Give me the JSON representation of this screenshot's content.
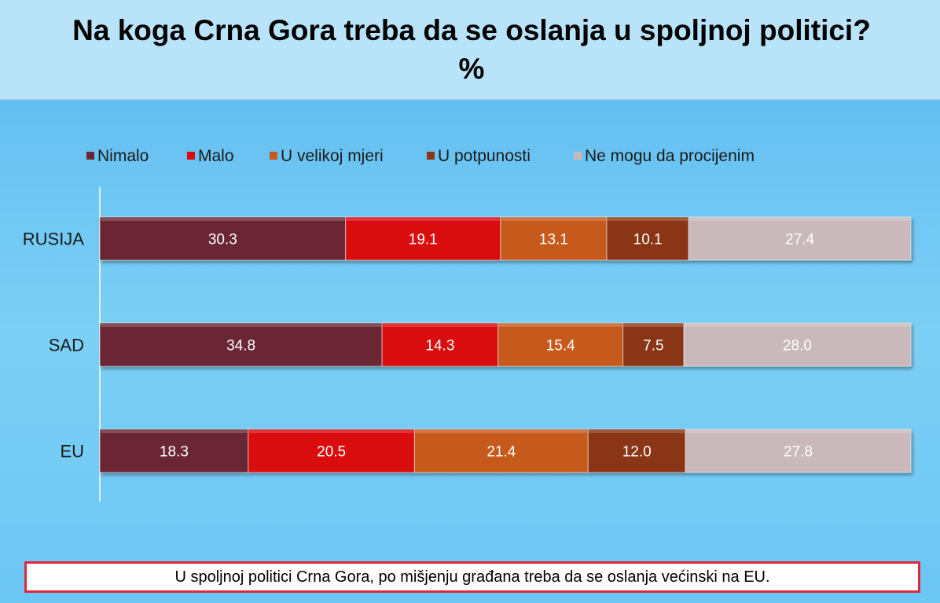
{
  "title": "Na koga Crna Gora treba da se oslanja u spoljnoj politici? %",
  "note": "U spoljnoj politici Crna Gora, po mišjenju građana treba da se oslanja većinski na EU.",
  "chart_data": {
    "type": "bar",
    "orientation": "horizontal",
    "stacked": true,
    "categories": [
      "RUSIJA",
      "SAD",
      "EU"
    ],
    "series": [
      {
        "name": "Nimalo",
        "color": "#6b2635",
        "values": [
          30.3,
          34.8,
          18.3
        ]
      },
      {
        "name": "Malo",
        "color": "#d90a0f",
        "values": [
          19.1,
          14.3,
          20.5
        ]
      },
      {
        "name": "U velikoj mjeri",
        "color": "#c65a1c",
        "values": [
          13.1,
          15.4,
          21.4
        ]
      },
      {
        "name": "U potpunosti",
        "color": "#8a3612",
        "values": [
          10.1,
          7.5,
          12.0
        ]
      },
      {
        "name": "Ne mogu da procijenim",
        "color": "#c9b9ba",
        "values": [
          27.4,
          28.0,
          27.8
        ]
      }
    ],
    "data_labels": [
      [
        "30.3",
        "19.1",
        "13.1",
        "10.1",
        "27.4"
      ],
      [
        "34.8",
        "14.3",
        "15.4",
        "7.5",
        "28.0"
      ],
      [
        "18.3",
        "20.5",
        "21.4",
        "12.0",
        "27.8"
      ]
    ],
    "xlim": [
      0,
      100
    ],
    "legend_position": "top",
    "grid": false
  }
}
